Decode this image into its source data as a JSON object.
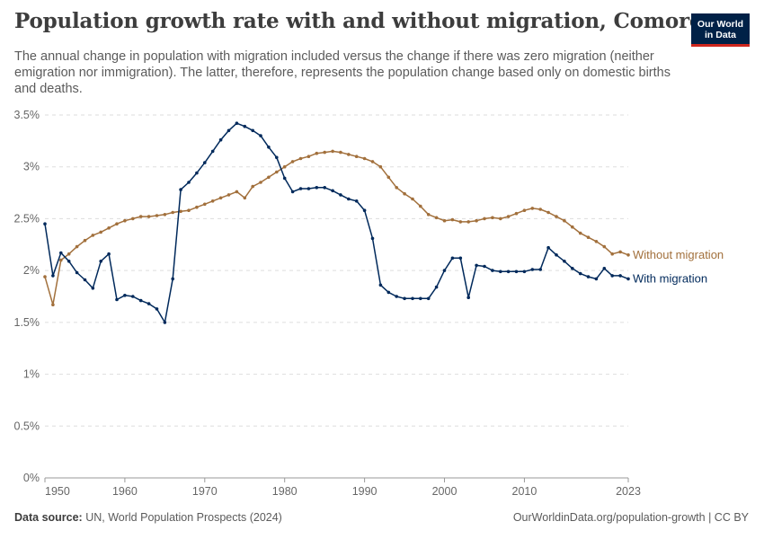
{
  "header": {
    "title": "Population growth rate with and without migration, Comoros",
    "subtitle": "The annual change in population with migration included versus the change if there was zero migration (neither emigration nor immigration). The latter, therefore, represents the population change based only on domestic births and deaths.",
    "logo_line1": "Our World",
    "logo_line2": "in Data",
    "logo_color": "#002147",
    "logo_accent": "#ce261e"
  },
  "footer": {
    "source_label": "Data source:",
    "source_text": "UN, World Population Prospects (2024)",
    "url_text": "OurWorldinData.org/population-growth | CC BY"
  },
  "chart_data": {
    "type": "line",
    "title": "Population growth rate with and without migration, Comoros",
    "xlabel": "",
    "ylabel": "",
    "xlim": [
      1950,
      2023
    ],
    "ylim": [
      0,
      3.5
    ],
    "grid": true,
    "y_ticks": [
      0,
      0.5,
      1,
      1.5,
      2,
      2.5,
      3,
      3.5
    ],
    "y_tick_labels": [
      "0%",
      "0.5%",
      "1%",
      "1.5%",
      "2%",
      "2.5%",
      "3%",
      "3.5%"
    ],
    "x_ticks": [
      1950,
      1960,
      1970,
      1980,
      1990,
      2000,
      2010,
      2023
    ],
    "x_tick_labels": [
      "1950",
      "1960",
      "1970",
      "1980",
      "1990",
      "2000",
      "2010",
      "2023"
    ],
    "legend_placement": "right-end labels",
    "x": [
      1950,
      1951,
      1952,
      1953,
      1954,
      1955,
      1956,
      1957,
      1958,
      1959,
      1960,
      1961,
      1962,
      1963,
      1964,
      1965,
      1966,
      1967,
      1968,
      1969,
      1970,
      1971,
      1972,
      1973,
      1974,
      1975,
      1976,
      1977,
      1978,
      1979,
      1980,
      1981,
      1982,
      1983,
      1984,
      1985,
      1986,
      1987,
      1988,
      1989,
      1990,
      1991,
      1992,
      1993,
      1994,
      1995,
      1996,
      1997,
      1998,
      1999,
      2000,
      2001,
      2002,
      2003,
      2004,
      2005,
      2006,
      2007,
      2008,
      2009,
      2010,
      2011,
      2012,
      2013,
      2014,
      2015,
      2016,
      2017,
      2018,
      2019,
      2020,
      2021,
      2022,
      2023
    ],
    "series": [
      {
        "name": "Without migration",
        "color": "#a2703c",
        "values": [
          1.94,
          1.67,
          2.1,
          2.16,
          2.23,
          2.29,
          2.34,
          2.37,
          2.41,
          2.45,
          2.48,
          2.5,
          2.52,
          2.52,
          2.53,
          2.54,
          2.56,
          2.57,
          2.58,
          2.61,
          2.64,
          2.67,
          2.7,
          2.73,
          2.76,
          2.7,
          2.81,
          2.85,
          2.9,
          2.95,
          3.0,
          3.05,
          3.08,
          3.1,
          3.13,
          3.14,
          3.15,
          3.14,
          3.12,
          3.1,
          3.08,
          3.05,
          3.0,
          2.9,
          2.8,
          2.74,
          2.69,
          2.62,
          2.54,
          2.51,
          2.48,
          2.49,
          2.47,
          2.47,
          2.48,
          2.5,
          2.51,
          2.5,
          2.52,
          2.55,
          2.58,
          2.6,
          2.59,
          2.56,
          2.52,
          2.48,
          2.42,
          2.36,
          2.32,
          2.28,
          2.23,
          2.16,
          2.18,
          2.15
        ]
      },
      {
        "name": "With migration",
        "color": "#00295b",
        "values": [
          2.45,
          1.95,
          2.17,
          2.09,
          1.98,
          1.91,
          1.83,
          2.09,
          2.16,
          1.72,
          1.76,
          1.75,
          1.71,
          1.68,
          1.63,
          1.5,
          1.92,
          2.78,
          2.85,
          2.94,
          3.04,
          3.15,
          3.26,
          3.35,
          3.42,
          3.39,
          3.35,
          3.3,
          3.19,
          3.09,
          2.89,
          2.76,
          2.79,
          2.79,
          2.8,
          2.8,
          2.77,
          2.73,
          2.69,
          2.67,
          2.58,
          2.31,
          1.86,
          1.79,
          1.75,
          1.73,
          1.73,
          1.73,
          1.73,
          1.84,
          2.0,
          2.12,
          2.12,
          1.74,
          2.05,
          2.04,
          2.0,
          1.99,
          1.99,
          1.99,
          1.99,
          2.01,
          2.01,
          2.22,
          2.15,
          2.09,
          2.02,
          1.97,
          1.94,
          1.92,
          2.02,
          1.95,
          1.95,
          1.92
        ]
      }
    ]
  }
}
